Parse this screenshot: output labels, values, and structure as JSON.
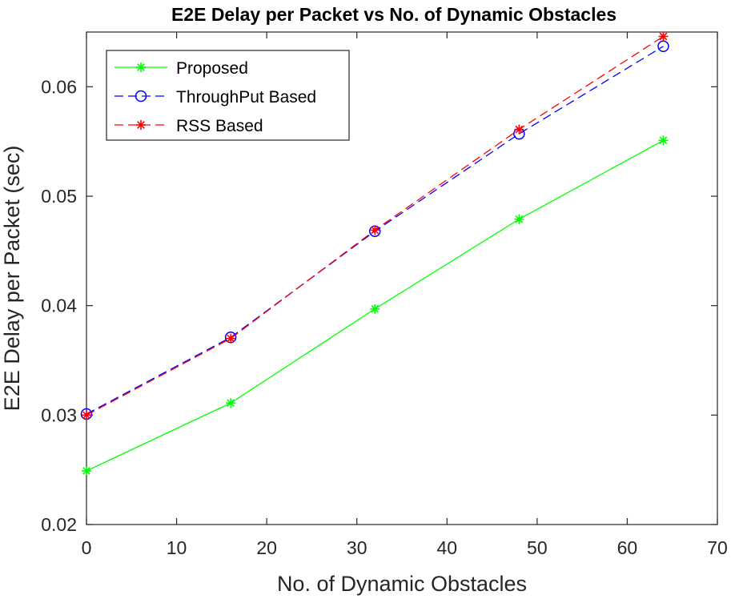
{
  "chart_data": {
    "type": "line",
    "title": "E2E Delay per Packet vs No. of Dynamic Obstacles",
    "xlabel": "No. of Dynamic Obstacles",
    "ylabel": "E2E Delay per Packet (sec)",
    "xlim": [
      0,
      70
    ],
    "ylim": [
      0.02,
      0.065
    ],
    "xticks": [
      0,
      10,
      20,
      30,
      40,
      50,
      60,
      70
    ],
    "yticks": [
      0.02,
      0.03,
      0.04,
      0.05,
      0.06
    ],
    "xtick_labels": [
      "0",
      "10",
      "20",
      "30",
      "40",
      "50",
      "60",
      "70"
    ],
    "ytick_labels": [
      "0.02",
      "0.03",
      "0.04",
      "0.05",
      "0.06"
    ],
    "grid": false,
    "legend_position": "top-left",
    "x": [
      0,
      16,
      32,
      48,
      64
    ],
    "series": [
      {
        "name": "Proposed",
        "values": [
          0.0249,
          0.0311,
          0.0397,
          0.0479,
          0.0551
        ],
        "color": "#00ff00",
        "line_style": "solid",
        "marker": "asterisk"
      },
      {
        "name": "ThroughPut Based",
        "values": [
          0.0301,
          0.0371,
          0.0468,
          0.0557,
          0.0637
        ],
        "color": "#0000ff",
        "line_style": "dashed",
        "marker": "circle"
      },
      {
        "name": "RSS Based",
        "values": [
          0.03,
          0.037,
          0.0469,
          0.0561,
          0.0646
        ],
        "color": "#ff0000",
        "line_style": "dashed",
        "marker": "asterisk"
      }
    ]
  }
}
